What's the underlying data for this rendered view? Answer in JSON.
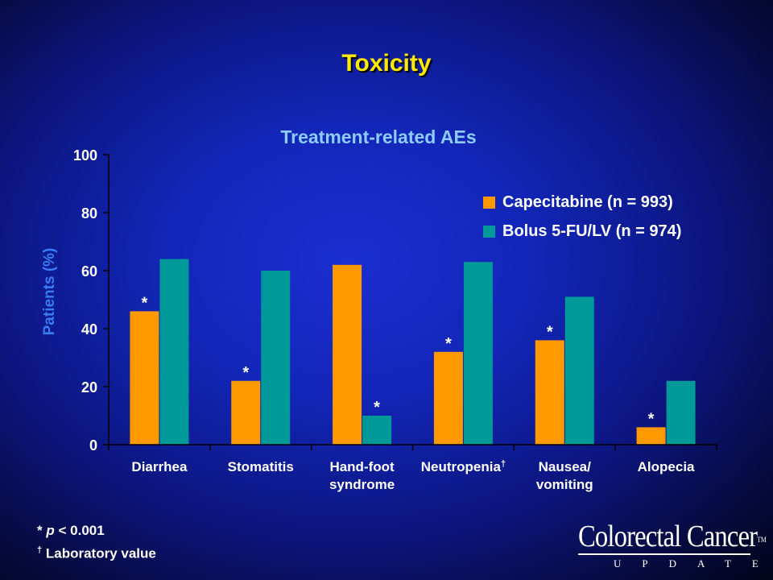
{
  "slide": {
    "title": "Toxicity"
  },
  "chart_data": {
    "type": "bar",
    "title": "Treatment-related AEs",
    "ylabel": "Patients (%)",
    "xlabel": "",
    "ylim": [
      0,
      100
    ],
    "yticks": [
      0,
      20,
      40,
      60,
      80,
      100
    ],
    "categories": [
      [
        "Diarrhea"
      ],
      [
        "Stomatitis"
      ],
      [
        "Hand-foot",
        "syndrome"
      ],
      [
        "Neutropenia",
        "†"
      ],
      [
        "Nausea/",
        "vomiting"
      ],
      [
        "Alopecia"
      ]
    ],
    "series": [
      {
        "name": "Capecitabine (n = 993)",
        "color": "#ff9900",
        "values": [
          46,
          22,
          62,
          32,
          36,
          6
        ]
      },
      {
        "name": "Bolus 5-FU/LV (n = 974)",
        "color": "#009999",
        "values": [
          64,
          60,
          10,
          63,
          51,
          22
        ]
      }
    ],
    "significance": [
      {
        "category_index": 0,
        "series_index": 0,
        "label": "*"
      },
      {
        "category_index": 1,
        "series_index": 0,
        "label": "*"
      },
      {
        "category_index": 2,
        "series_index": 1,
        "label": "*"
      },
      {
        "category_index": 3,
        "series_index": 0,
        "label": "*"
      },
      {
        "category_index": 4,
        "series_index": 0,
        "label": "*"
      },
      {
        "category_index": 5,
        "series_index": 0,
        "label": "*"
      }
    ],
    "legend_position": "top-right",
    "grid": false
  },
  "footnotes": {
    "sig_symbol": "*",
    "sig_italic": "p",
    "sig_rest": "< 0.001",
    "dagger_symbol": "†",
    "dagger_text": "Laboratory value"
  },
  "logo": {
    "main": "Colorectal Cancer",
    "tm": "TM",
    "sub": "UPDATE"
  }
}
